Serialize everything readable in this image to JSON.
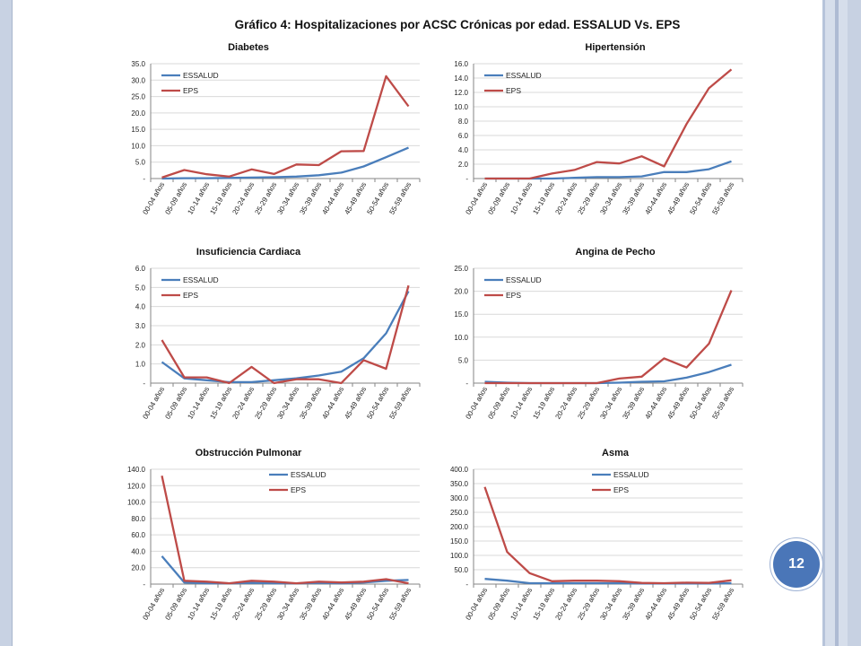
{
  "page": {
    "main_title": "Gráfico 4: Hospitalizaciones por ACSC Crónicas por edad. ESSALUD Vs. EPS",
    "page_number": "12"
  },
  "colors": {
    "essalud": "#4a7ebb",
    "eps": "#be4b48",
    "grid": "#d9d9d9",
    "axis": "#868686"
  },
  "chart_data": [
    {
      "type": "line",
      "title": "Diabetes",
      "categories": [
        "00-04 años",
        "05-09 años",
        "10-14 años",
        "15-19 años",
        "20-24 años",
        "25-29 años",
        "30-34 años",
        "35-39 años",
        "40-44 años",
        "45-49 años",
        "50-54 años",
        "55-59 años"
      ],
      "yticks": [
        "35.0",
        "30.0",
        "25.0",
        "20.0",
        "15.0",
        "10.0",
        "5.0",
        "-"
      ],
      "ylim": [
        0,
        35
      ],
      "legend": "top-left",
      "series": [
        {
          "name": "ESSALUD",
          "values": [
            0.0,
            0.1,
            0.1,
            0.2,
            0.3,
            0.4,
            0.6,
            1.0,
            1.8,
            3.7,
            6.5,
            9.4
          ]
        },
        {
          "name": "EPS",
          "values": [
            0.3,
            2.6,
            1.3,
            0.6,
            2.8,
            1.4,
            4.3,
            4.1,
            8.3,
            8.4,
            31.2,
            22.0
          ]
        }
      ]
    },
    {
      "type": "line",
      "title": "Hipertensión",
      "categories": [
        "00-04 años",
        "05-09 años",
        "10-14 años",
        "15-19 años",
        "20-24 años",
        "25-29 años",
        "30-34 años",
        "35-39 años",
        "40-44 años",
        "45-49 años",
        "50-54 años",
        "55-59 años"
      ],
      "yticks": [
        "16.0",
        "14.0",
        "12.0",
        "10.0",
        "8.0",
        "6.0",
        "4.0",
        "2.0",
        "-"
      ],
      "ylim": [
        0,
        16
      ],
      "legend": "top-left",
      "series": [
        {
          "name": "ESSALUD",
          "values": [
            0.0,
            0.0,
            0.0,
            0.0,
            0.1,
            0.2,
            0.2,
            0.3,
            0.9,
            0.9,
            1.3,
            2.4
          ]
        },
        {
          "name": "EPS",
          "values": [
            0.0,
            0.0,
            0.0,
            0.7,
            1.2,
            2.3,
            2.1,
            3.1,
            1.7,
            7.6,
            12.6,
            15.2
          ]
        }
      ]
    },
    {
      "type": "line",
      "title": "Insuficiencia Cardiaca",
      "categories": [
        "00-04 años",
        "05-09 años",
        "10-14 años",
        "15-19 años",
        "20-24 años",
        "25-29 años",
        "30-34 años",
        "35-39 años",
        "40-44 años",
        "45-49 años",
        "50-54 años",
        "55-59 años"
      ],
      "yticks": [
        "6.0",
        "5.0",
        "4.0",
        "3.0",
        "2.0",
        "1.0",
        "-"
      ],
      "ylim": [
        0,
        6
      ],
      "legend": "top-left",
      "series": [
        {
          "name": "ESSALUD",
          "values": [
            1.1,
            0.25,
            0.15,
            0.05,
            0.05,
            0.15,
            0.25,
            0.4,
            0.6,
            1.3,
            2.6,
            4.8
          ]
        },
        {
          "name": "EPS",
          "values": [
            2.25,
            0.3,
            0.3,
            0.0,
            0.85,
            0.0,
            0.2,
            0.2,
            0.0,
            1.2,
            0.75,
            5.1
          ]
        }
      ]
    },
    {
      "type": "line",
      "title": "Angina de Pecho",
      "categories": [
        "00-04 años",
        "05-09 años",
        "10-14 años",
        "15-19 años",
        "20-24 años",
        "25-29 años",
        "30-34 años",
        "35-39 años",
        "40-44 años",
        "45-49 años",
        "50-54 años",
        "55-59 años"
      ],
      "yticks": [
        "25.0",
        "20.0",
        "15.0",
        "10.0",
        "5.0",
        "-"
      ],
      "ylim": [
        0,
        25
      ],
      "legend": "top-left",
      "series": [
        {
          "name": "ESSALUD",
          "values": [
            0.3,
            0.1,
            0.0,
            0.0,
            0.0,
            0.0,
            0.1,
            0.3,
            0.4,
            1.2,
            2.4,
            4.0
          ]
        },
        {
          "name": "EPS",
          "values": [
            0.0,
            0.0,
            0.0,
            0.0,
            0.0,
            0.0,
            1.0,
            1.4,
            5.4,
            3.4,
            8.6,
            20.2
          ]
        }
      ]
    },
    {
      "type": "line",
      "title": "Obstrucción Pulmonar",
      "categories": [
        "00-04 años",
        "05-09 años",
        "10-14 años",
        "15-19 años",
        "20-24 años",
        "25-29 años",
        "30-34 años",
        "35-39 años",
        "40-44 años",
        "45-49 años",
        "50-54 años",
        "55-59 años"
      ],
      "yticks": [
        "140.0",
        "120.0",
        "100.0",
        "80.0",
        "60.0",
        "40.0",
        "20.0",
        "-"
      ],
      "ylim": [
        0,
        140
      ],
      "legend": "top-right",
      "series": [
        {
          "name": "ESSALUD",
          "values": [
            34.0,
            2.0,
            1.0,
            1.0,
            1.5,
            1.0,
            1.0,
            1.5,
            1.0,
            2.0,
            4.0,
            5.0
          ]
        },
        {
          "name": "EPS",
          "values": [
            132.0,
            4.0,
            3.0,
            1.0,
            4.0,
            3.0,
            1.0,
            3.0,
            2.0,
            3.0,
            6.0,
            1.0
          ]
        }
      ]
    },
    {
      "type": "line",
      "title": "Asma",
      "categories": [
        "00-04 años",
        "05-09 años",
        "10-14 años",
        "15-19 años",
        "20-24 años",
        "25-29 años",
        "30-34 años",
        "35-39 años",
        "40-44 años",
        "45-49 años",
        "50-54 años",
        "55-59 años"
      ],
      "yticks": [
        "400.0",
        "350.0",
        "300.0",
        "250.0",
        "200.0",
        "150.0",
        "100.0",
        "50.0",
        "-"
      ],
      "ylim": [
        0,
        400
      ],
      "legend": "top-right",
      "series": [
        {
          "name": "ESSALUD",
          "values": [
            18.0,
            12.0,
            3.0,
            3.0,
            3.0,
            3.0,
            3.0,
            2.0,
            2.0,
            2.0,
            2.0,
            3.0
          ]
        },
        {
          "name": "EPS",
          "values": [
            338.0,
            112.0,
            38.0,
            10.0,
            12.0,
            12.0,
            10.0,
            4.0,
            3.0,
            5.0,
            4.0,
            13.0
          ]
        }
      ]
    }
  ]
}
